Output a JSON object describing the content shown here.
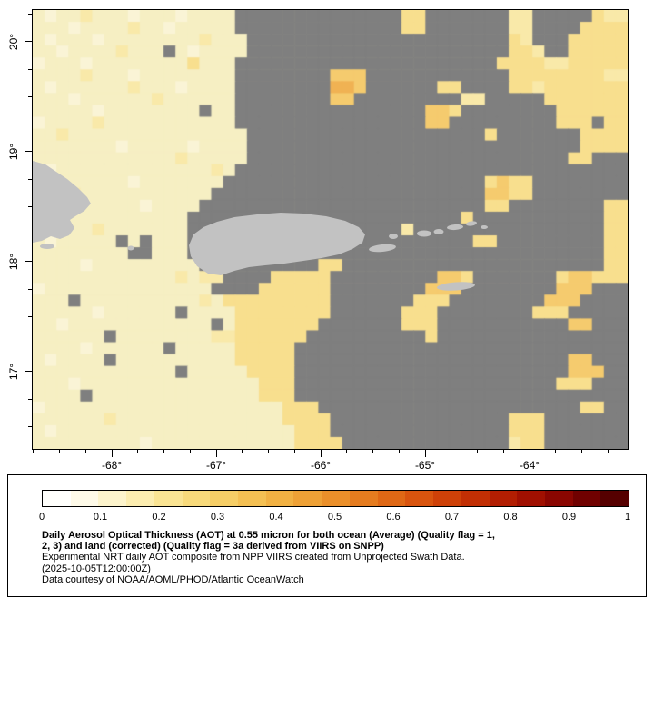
{
  "map": {
    "land_color": "#C2C2C2",
    "grid": {
      "cols": 50,
      "rows": 37,
      "palette": {
        ".": "#F6EFC3",
        ",": "#FAF4D6",
        "1": "#F9E9A9",
        "2": "#F8DF8E",
        "3": "#F5CB6E",
        "4": "#F0B253",
        "G": "#7F7F7F"
      },
      "rows_data": [
        ".,..1...,...,....GGGGGGGGGGGGGG22GGGGGGG11GGGGG211",
        "...,....1..,.....GGGGGGGGGGGGGG22GGGGGGG11GGGG2222",
        ".,...,........1...GGGGGGGGGGGGGGGGGGGGGG21GGG22222",
        "..,....1...G.,....GGGGGGGGGGGGGGGGGGGGGG221GG22222",
        ",...,........2...GGGGGGGGGGGGGGGGGGGGGG22221122222",
        "....1...,........GGGGGGGG333GGGGGGGGGGGG2222222211",
        ".,......1...,....GGGGGGGG443GGGGGG22GGGG2212222222",
        "...,......1......GGGGGGGG33GGGGGGGGG11GGGGG2222222",
        ".....,........G..GGGGGGGGGGGGGGGG332GGGGGGGG222222",
        ",....1...........GGGGGGGGGGGGGGGG33GGGGGGGGG222G22",
        "..1...............GGGGGGGGGGGGGGGGGGGG2GGGGGGG2222",
        ".......,.....,....GGGGGGGGGGGGGGGGGGGGGGGGGGGG2222",
        "............1.....GGGGGGGGGGGGGGGGGGGGGGGGGGG22GGG",
        ".,.............1.GGGGGGGGGGGGGGGGGGGGGGGGGGGGGGGGG",
        "........,.......GGGGGGGGGGGGGGGGGGGGGG2322GGGGGGGG",
        "...1...........GGGGGGGGGGGGGGGGGGGGGGG3322GGGGGGGG",
        ".........,....GGGGGGGGGGGGGGGGGGGGGGGG22GGGGGGGG22",
        "..,..........GGGGGGGGGGGGGGGGGGGGGGG2GGGGGGGGGGG22",
        ".....1.......GGGGGGGGGGGGGGGGGG1GGGGGGGGGGGGGGGG22",
        ".,.....G.G...GGGGGGGGGGGGGGGGGGGGGGGG22GGGGGGGGG22",
        "........GG...GGGGGGGGGGGGGGGGGGGGGGGGGGGGGGGGGGG22",
        "....,.........GGGGGGGGGG22GGGGGGGGGGGGGGGGGGGGGG22",
        "............1.11GGGG22222GGGGGGGGG332GGGGGGG233222",
        ",..............GGGG222222GGGGGGGG333GGGGGGGG333GGG",
        "...G..........1.222222222GGGGGGG222GGGGGGGG333GGGG",
        ".....,......G....22222222GGGGGG222GGGGGGGG222GGGGG",
        "..,............G.2222222GGGGGGG222GGGGGGGGGGG33GGG",
        "......G........11222222GGGGGGGGGG2GGGGGGGGGGGGGGGG",
        "....,......G.....22222GGGGGGGGGGGGGGGGGGGGGGGGGGGG",
        ".,....G..........22222GGGGGGGGGGGGGGGGGGGGGGG33GGG",
        "............G.....2222GGGGGGGGGGGGGGGGGGGGGGG333GG",
        "...,...............222GGGGGGGGGGGGGGGGGGGGGG222GGG",
        "....G..............222GGGGGGGGGGGGGGGGGGGGGGGGGGGG",
        ",....................222GGGGGGGGGGGGGGGGGGGGGG22GG",
        "......1..............2222GGGGGGGGGGGGGGG222GGGGGGG",
        ".,....................222GGGGGGGGGGGGGGG222GGGGGGG",
        ".........,............2222GGGGGGGGGGGGGG122GGGGGGG"
      ]
    },
    "lat_axis": {
      "min": 16.296,
      "max": 20.289,
      "minor_step": 0.25,
      "ticks": [
        {
          "label": "20°",
          "value": 20
        },
        {
          "label": "19°",
          "value": 19
        },
        {
          "label": "18°",
          "value": 18
        },
        {
          "label": "17°",
          "value": 17
        }
      ]
    },
    "lon_axis": {
      "min": -68.757,
      "max": -63.061,
      "minor_step": 0.25,
      "ticks": [
        {
          "label": "-68°",
          "value": -68
        },
        {
          "label": "-67°",
          "value": -67
        },
        {
          "label": "-66°",
          "value": -66
        },
        {
          "label": "-65°",
          "value": -65
        },
        {
          "label": "-64°",
          "value": -64
        }
      ]
    }
  },
  "legend": {
    "colorbar": {
      "colors": [
        "#FFFFFC",
        "#FEFAE8",
        "#FDF4CC",
        "#FCEDB0",
        "#FAE493",
        "#F8DA7B",
        "#F6CE66",
        "#F4C053",
        "#F1B143",
        "#EEA136",
        "#EA8F2A",
        "#E57C1F",
        "#DF6815",
        "#D8540E",
        "#CE4108",
        "#C22F04",
        "#B21E02",
        "#A01001",
        "#8A0601",
        "#700100",
        "#560000"
      ],
      "ticks": [
        {
          "label": "0",
          "value": 0.0
        },
        {
          "label": "0.1",
          "value": 0.1
        },
        {
          "label": "0.2",
          "value": 0.2
        },
        {
          "label": "0.3",
          "value": 0.3
        },
        {
          "label": "0.4",
          "value": 0.4
        },
        {
          "label": "0.5",
          "value": 0.5
        },
        {
          "label": "0.6",
          "value": 0.6
        },
        {
          "label": "0.7",
          "value": 0.7
        },
        {
          "label": "0.8",
          "value": 0.8
        },
        {
          "label": "0.9",
          "value": 0.9
        },
        {
          "label": "1",
          "value": 1.0
        }
      ]
    },
    "title_line1": "Daily Aerosol Optical Thickness (AOT) at 0.55 micron for both ocean (Average) (Quality flag = 1,",
    "title_line2": "2, 3) and land (corrected) (Quality flag = 3a derived from VIIRS on SNPP)",
    "subtitle": "Experimental NRT daily AOT composite from NPP VIIRS created from Unprojected Swath Data.",
    "timestamp": "(2025-10-05T12:00:00Z)",
    "credit": "Data courtesy of NOAA/AOML/PHOD/Atlantic OceanWatch"
  }
}
